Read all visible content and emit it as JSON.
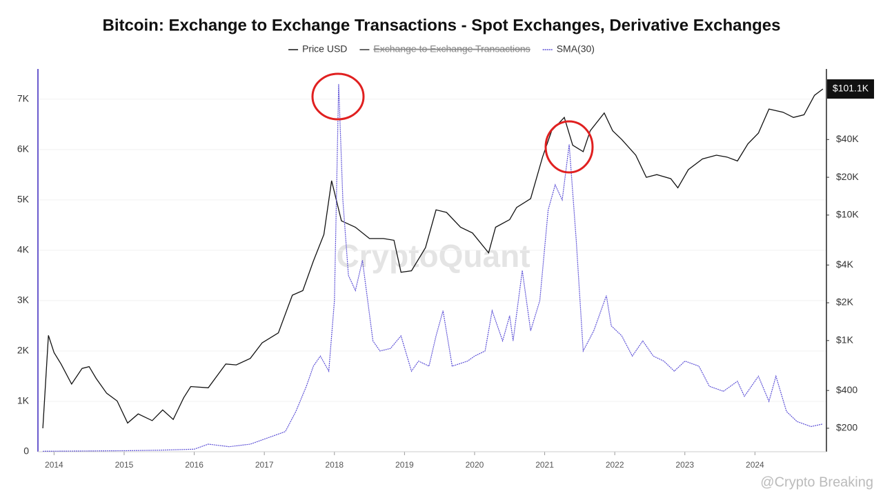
{
  "chart_data": {
    "type": "line",
    "title": "Bitcoin: Exchange to Exchange Transactions - Spot Exchanges, Derivative Exchanges",
    "xlim": [
      2013.77,
      2025.02
    ],
    "xticks": [
      2014,
      2015,
      2016,
      2017,
      2018,
      2019,
      2020,
      2021,
      2022,
      2023,
      2024
    ],
    "ylim": [
      0,
      7600
    ],
    "yticks": [
      0,
      {
        "value": 1000,
        "label": "1K"
      },
      {
        "value": 2000,
        "label": "2K"
      },
      {
        "value": 3000,
        "label": "3K"
      },
      {
        "value": 4000,
        "label": "4K"
      },
      {
        "value": 5000,
        "label": "5K"
      },
      {
        "value": 6000,
        "label": "6K"
      },
      {
        "value": 7000,
        "label": "7K"
      }
    ],
    "y2lim": [
      130,
      146000
    ],
    "y2scale": "log",
    "y2ticks": [
      {
        "value": 200,
        "label": "$200"
      },
      {
        "value": 400,
        "label": "$400"
      },
      {
        "value": 1000,
        "label": "$1K"
      },
      {
        "value": 2000,
        "label": "$2K"
      },
      {
        "value": 4000,
        "label": "$4K"
      },
      {
        "value": 10000,
        "label": "$10K"
      },
      {
        "value": 20000,
        "label": "$20K"
      },
      {
        "value": 40000,
        "label": "$40K"
      }
    ],
    "grid": true,
    "legend": "top",
    "series": [
      {
        "name": "Price USD",
        "color": "#111111",
        "axis": "y2",
        "x": [
          2013.84,
          2013.92,
          2014.0,
          2014.1,
          2014.25,
          2014.4,
          2014.5,
          2014.6,
          2014.75,
          2014.9,
          2015.05,
          2015.2,
          2015.4,
          2015.55,
          2015.7,
          2015.85,
          2015.95,
          2016.2,
          2016.45,
          2016.6,
          2016.8,
          2016.97,
          2017.2,
          2017.4,
          2017.55,
          2017.7,
          2017.85,
          2017.96,
          2018.1,
          2018.3,
          2018.5,
          2018.7,
          2018.85,
          2018.95,
          2019.1,
          2019.3,
          2019.45,
          2019.6,
          2019.8,
          2019.97,
          2020.2,
          2020.3,
          2020.5,
          2020.6,
          2020.8,
          2020.97,
          2021.1,
          2021.28,
          2021.4,
          2021.55,
          2021.65,
          2021.85,
          2021.97,
          2022.1,
          2022.3,
          2022.45,
          2022.6,
          2022.8,
          2022.9,
          2023.05,
          2023.25,
          2023.45,
          2023.6,
          2023.75,
          2023.9,
          2024.05,
          2024.2,
          2024.4,
          2024.55,
          2024.7,
          2024.85,
          2024.97
        ],
        "values": [
          200,
          1100,
          800,
          650,
          450,
          600,
          620,
          500,
          380,
          330,
          220,
          260,
          230,
          280,
          235,
          350,
          430,
          420,
          650,
          640,
          720,
          960,
          1150,
          2300,
          2500,
          4300,
          7000,
          18800,
          9000,
          8000,
          6500,
          6500,
          6300,
          3500,
          3600,
          5500,
          11000,
          10500,
          8000,
          7200,
          5000,
          8000,
          9200,
          11500,
          13500,
          29000,
          47000,
          60000,
          36000,
          32000,
          47000,
          65000,
          47000,
          40000,
          30000,
          20000,
          21000,
          19500,
          16500,
          23000,
          28000,
          30000,
          29000,
          27000,
          37000,
          45000,
          70000,
          66000,
          60000,
          63000,
          90000,
          101100
        ],
        "last_label": "$101.1K"
      },
      {
        "name": "Exchange to Exchange Transactions",
        "color": "#333333",
        "hidden": true,
        "x": [],
        "values": []
      },
      {
        "name": "SMA(30)",
        "color": "#5b4fd6",
        "dashed": true,
        "x": [
          2013.84,
          2014.5,
          2015.0,
          2015.5,
          2016.0,
          2016.2,
          2016.5,
          2016.8,
          2017.0,
          2017.3,
          2017.45,
          2017.6,
          2017.7,
          2017.8,
          2017.92,
          2018.0,
          2018.06,
          2018.12,
          2018.2,
          2018.3,
          2018.4,
          2018.55,
          2018.65,
          2018.8,
          2018.95,
          2019.1,
          2019.2,
          2019.35,
          2019.45,
          2019.55,
          2019.68,
          2019.9,
          2020.0,
          2020.15,
          2020.25,
          2020.4,
          2020.5,
          2020.55,
          2020.68,
          2020.8,
          2020.93,
          2021.05,
          2021.15,
          2021.25,
          2021.35,
          2021.45,
          2021.55,
          2021.7,
          2021.88,
          2021.95,
          2022.1,
          2022.25,
          2022.4,
          2022.55,
          2022.7,
          2022.85,
          2023.0,
          2023.2,
          2023.35,
          2023.55,
          2023.75,
          2023.85,
          2024.05,
          2024.2,
          2024.3,
          2024.45,
          2024.6,
          2024.8,
          2024.97
        ],
        "values": [
          10,
          15,
          20,
          30,
          50,
          150,
          100,
          150,
          250,
          400,
          800,
          1300,
          1700,
          1900,
          1600,
          3000,
          7300,
          5000,
          3500,
          3200,
          3800,
          2200,
          2000,
          2050,
          2300,
          1600,
          1800,
          1700,
          2300,
          2800,
          1700,
          1800,
          1900,
          2000,
          2800,
          2200,
          2700,
          2200,
          3600,
          2400,
          3000,
          4800,
          5300,
          5000,
          6100,
          4200,
          2000,
          2400,
          3100,
          2500,
          2300,
          1900,
          2200,
          1900,
          1800,
          1600,
          1800,
          1700,
          1300,
          1200,
          1400,
          1100,
          1500,
          1000,
          1500,
          800,
          600,
          500,
          550
        ]
      }
    ],
    "watermarks": [
      "CryptoQuant",
      "@Crypto Breaking"
    ]
  }
}
